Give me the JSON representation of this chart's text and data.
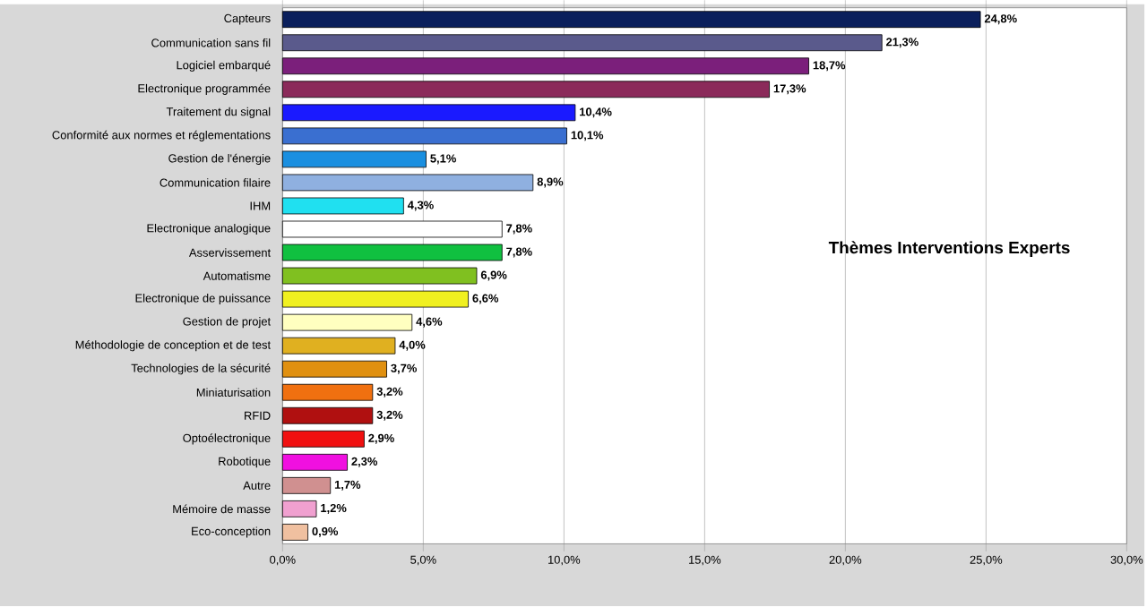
{
  "chart_data": {
    "type": "bar",
    "orientation": "horizontal",
    "title": "Thèmes Interventions Experts",
    "categories": [
      "Capteurs",
      "Communication sans fil",
      "Logiciel embarqué",
      "Electronique programmée",
      "Traitement du signal",
      "Conformité aux normes et réglementations",
      "Gestion de l'énergie",
      "Communication filaire",
      "IHM",
      "Electronique analogique",
      "Asservissement",
      "Automatisme",
      "Electronique de puissance",
      "Gestion de projet",
      "Méthodologie de conception et de test",
      "Technologies de la sécurité",
      "Miniaturisation",
      "RFID",
      "Optoélectronique",
      "Robotique",
      "Autre",
      "Mémoire de masse",
      "Eco-conception"
    ],
    "values": [
      24.8,
      21.3,
      18.7,
      17.3,
      10.4,
      10.1,
      5.1,
      8.9,
      4.3,
      7.8,
      7.8,
      6.9,
      6.6,
      4.6,
      4.0,
      3.7,
      3.2,
      3.2,
      2.9,
      2.3,
      1.7,
      1.2,
      0.9
    ],
    "value_labels": [
      "24,8%",
      "21,3%",
      "18,7%",
      "17,3%",
      "10,4%",
      "10,1%",
      "5,1%",
      "8,9%",
      "4,3%",
      "7,8%",
      "7,8%",
      "6,9%",
      "6,6%",
      "4,6%",
      "4,0%",
      "3,7%",
      "3,2%",
      "3,2%",
      "2,9%",
      "2,3%",
      "1,7%",
      "1,2%",
      "0,9%"
    ],
    "colors": [
      "#0a1f5c",
      "#5a5a8c",
      "#7b1f7b",
      "#8b2a5a",
      "#1a1aff",
      "#3a6fd0",
      "#1a8fe0",
      "#8fb0e0",
      "#20e0f0",
      "#ffffff",
      "#10c040",
      "#80c020",
      "#f0f020",
      "#ffffc0",
      "#e0b020",
      "#e09010",
      "#f07010",
      "#b01010",
      "#f01010",
      "#f010e0",
      "#d09090",
      "#f0a0d0",
      "#f0c0a0"
    ],
    "xlim": [
      0,
      30
    ],
    "xticks": [
      {
        "value": 0,
        "label": "0,0%"
      },
      {
        "value": 5,
        "label": "5,0%"
      },
      {
        "value": 10,
        "label": "10,0%"
      },
      {
        "value": 15,
        "label": "15,0%"
      },
      {
        "value": 20,
        "label": "20,0%"
      },
      {
        "value": 25,
        "label": "25,0%"
      },
      {
        "value": 30,
        "label": "30,0%"
      }
    ],
    "grid": "x"
  }
}
